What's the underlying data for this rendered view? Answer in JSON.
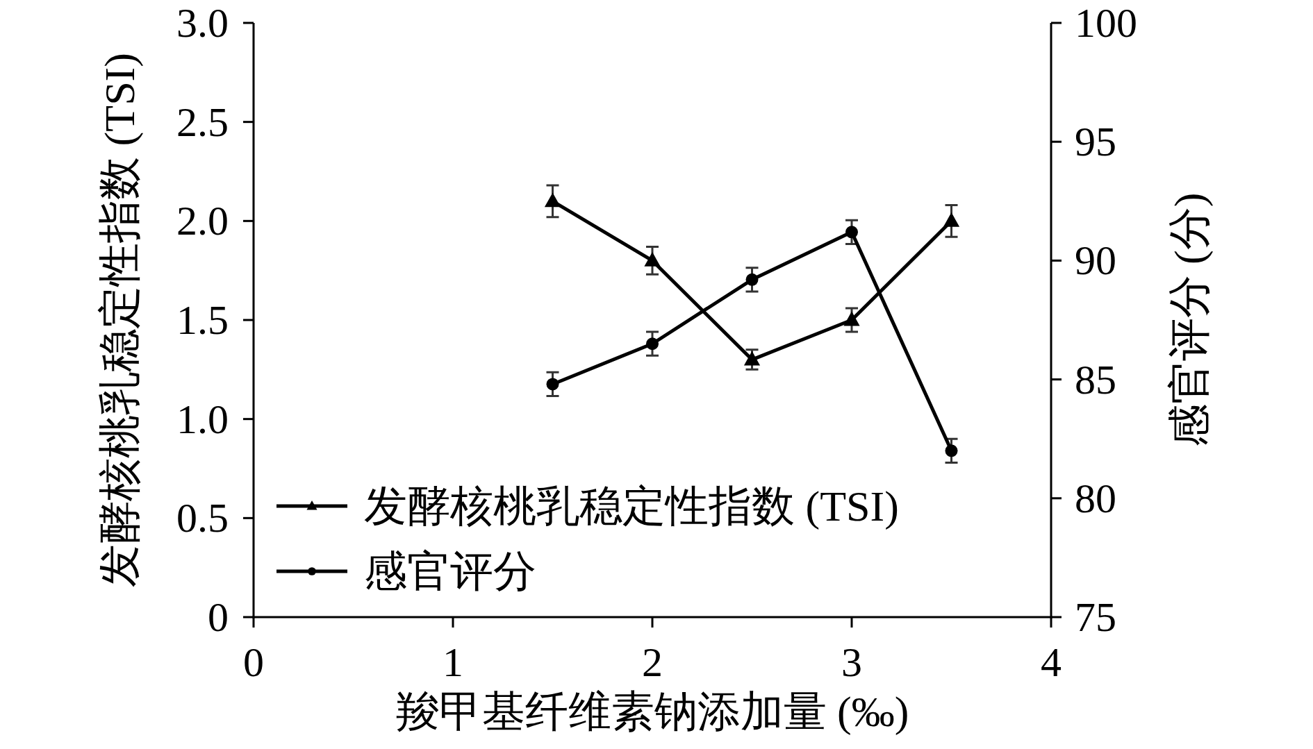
{
  "chart_data": {
    "type": "line",
    "xlabel": "羧甲基纤维素钠添加量 (‰)",
    "ylabel": "发酵核桃乳稳定性指数 (TSI)",
    "y2label": "感官评分 (分)",
    "x": [
      1.5,
      2,
      2.5,
      3,
      3.5
    ],
    "xlim": [
      0,
      4
    ],
    "xticks": [
      0,
      1,
      2,
      3,
      4
    ],
    "ylim": [
      0,
      3
    ],
    "yticks": [
      0,
      0.5,
      {
        "value": 1,
        "label": "1.0"
      },
      1.5,
      {
        "value": 2,
        "label": "2.0"
      },
      2.5,
      {
        "value": 3,
        "label": "3.0"
      }
    ],
    "y2lim": [
      75,
      100
    ],
    "y2ticks": [
      75,
      80,
      85,
      90,
      95,
      100
    ],
    "series": [
      {
        "name": "发酵核桃乳稳定性指数 (TSI)",
        "color": "#000000",
        "marker": "triangle",
        "values": [
          2.1,
          1.8,
          1.3,
          1.5,
          2.0
        ],
        "errors": [
          0.08,
          0.07,
          0.05,
          0.06,
          0.08
        ]
      },
      {
        "name": "感官评分",
        "color": "#000000",
        "marker": "circle",
        "axis": "y2",
        "values": [
          84.8,
          86.5,
          89.2,
          91.2,
          82.0
        ],
        "errors": [
          0.5,
          0.5,
          0.5,
          0.5,
          0.5
        ]
      }
    ],
    "legend": "bottom left",
    "grid": false,
    "line_style": "solid"
  }
}
